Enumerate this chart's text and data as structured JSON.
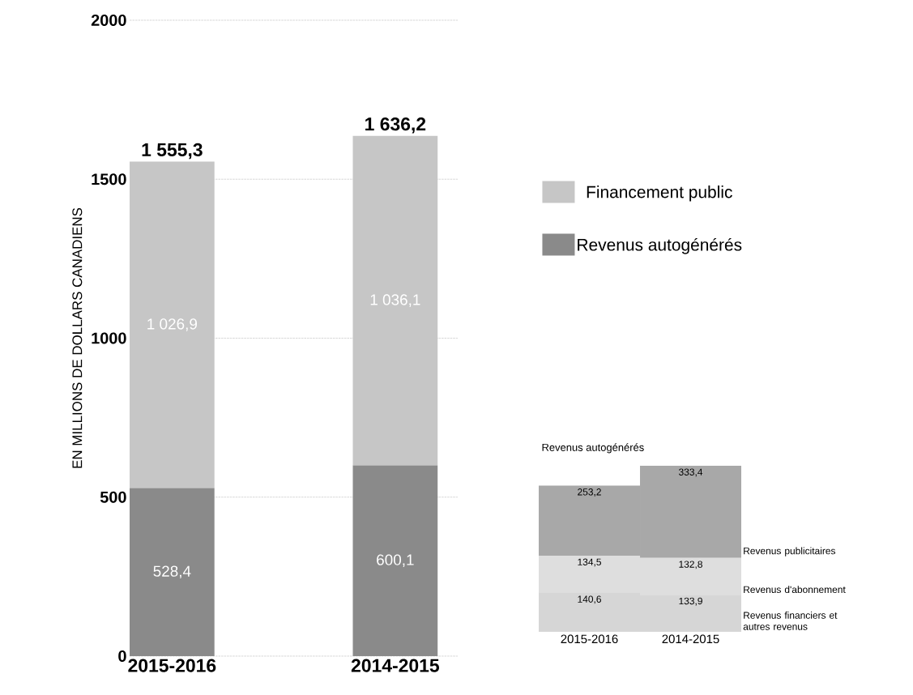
{
  "chart_data": [
    {
      "type": "bar",
      "stacked": true,
      "ylabel": "EN MILLIONS DE DOLLARS CANADIENS",
      "categories": [
        "2015-2016",
        "2014-2015"
      ],
      "series": [
        {
          "name": "Revenus autogénérés",
          "color": "#8a8a8a",
          "values": [
            528.4,
            600.1
          ],
          "value_labels": [
            "528,4",
            "600,1"
          ]
        },
        {
          "name": "Financement public",
          "color": "#c6c6c6",
          "values": [
            1026.9,
            1036.1
          ],
          "value_labels": [
            "1 026,9",
            "1 036,1"
          ]
        }
      ],
      "totals": [
        "1 555,3",
        "1 636,2"
      ],
      "ylim": [
        0,
        2000
      ],
      "yticks": [
        0,
        500,
        1000,
        1500,
        2000
      ],
      "grid": "y",
      "legend": "right"
    },
    {
      "type": "bar",
      "stacked": true,
      "title": "Revenus autogénérés",
      "categories": [
        "2015-2016",
        "2014-2015"
      ],
      "series": [
        {
          "name": "Revenus financiers et autres revenus",
          "color": "#d6d6d6",
          "values": [
            140.6,
            133.9
          ],
          "value_labels": [
            "140,6",
            "133,9"
          ]
        },
        {
          "name": "Revenus d'abonnement",
          "color": "#dedede",
          "values": [
            134.5,
            132.8
          ],
          "value_labels": [
            "134,5",
            "132,8"
          ]
        },
        {
          "name": "Revenus publicitaires",
          "color": "#a8a8a8",
          "values": [
            253.2,
            333.4
          ],
          "value_labels": [
            "253,2",
            "333,4"
          ]
        }
      ]
    }
  ]
}
